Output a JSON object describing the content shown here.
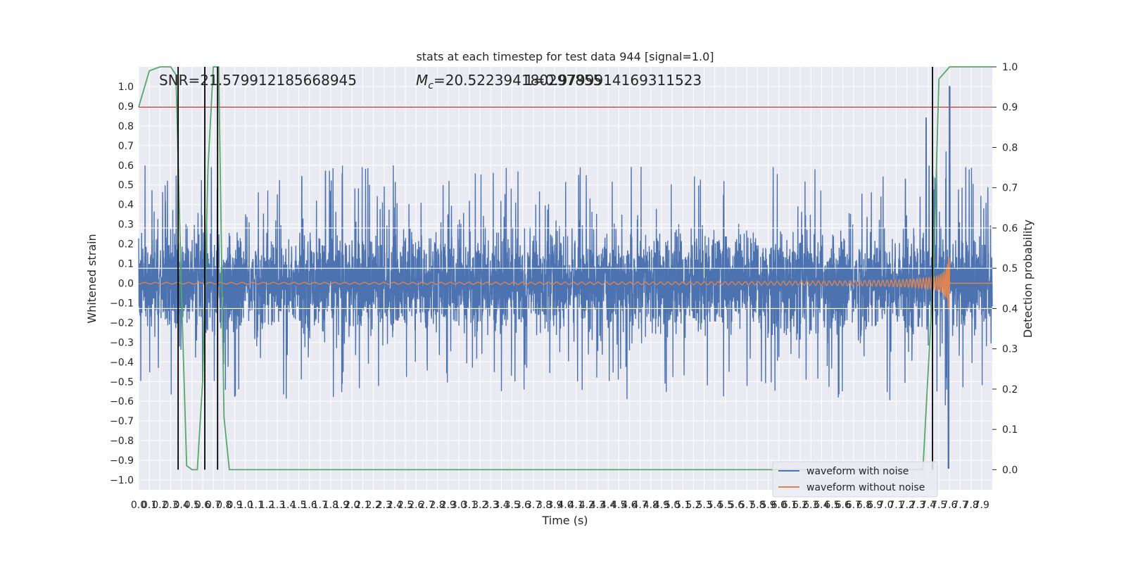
{
  "chart_data": {
    "type": "line",
    "title": "stats at each timestep for test data 944 [signal=1.0]",
    "xlabel": "Time (s)",
    "ylabel": "Whitened strain",
    "y2label": "Detection probability",
    "xlim": [
      0.0,
      8.0
    ],
    "ylim": [
      -1.05,
      1.1
    ],
    "y2lim": [
      -0.05,
      1.0
    ],
    "xticks": [
      "0.0",
      "0.1",
      "0.2",
      "0.3",
      "0.4",
      "0.5",
      "0.6",
      "0.7",
      "0.8",
      "0.9",
      "1.0",
      "1.1",
      "1.2",
      "1.3",
      "1.4",
      "1.5",
      "1.6",
      "1.7",
      "1.8",
      "1.9",
      "2.0",
      "2.1",
      "2.2",
      "2.3",
      "2.4",
      "2.5",
      "2.6",
      "2.7",
      "2.8",
      "2.9",
      "3.0",
      "3.1",
      "3.2",
      "3.3",
      "3.4",
      "3.5",
      "3.6",
      "3.7",
      "3.8",
      "3.9",
      "4.0",
      "4.1",
      "4.2",
      "4.3",
      "4.4",
      "4.5",
      "4.6",
      "4.7",
      "4.8",
      "4.9",
      "5.0",
      "5.1",
      "5.2",
      "5.3",
      "5.4",
      "5.5",
      "5.6",
      "5.7",
      "5.8",
      "5.9",
      "6.0",
      "6.1",
      "6.2",
      "6.3",
      "6.4",
      "6.5",
      "6.6",
      "6.7",
      "6.8",
      "6.9",
      "7.0",
      "7.1",
      "7.2",
      "7.3",
      "7.4",
      "7.5",
      "7.6",
      "7.7",
      "7.8",
      "7.9"
    ],
    "yticks": [
      "1.0",
      "0.9",
      "0.8",
      "0.7",
      "0.6",
      "0.5",
      "0.4",
      "0.3",
      "0.2",
      "0.1",
      "0.0",
      "-0.1",
      "-0.2",
      "-0.3",
      "-0.4",
      "-0.5",
      "-0.6",
      "-0.7",
      "-0.8",
      "-0.9",
      "-1.0"
    ],
    "y2ticks": [
      "1.0",
      "0.9",
      "0.8",
      "0.7",
      "0.6",
      "0.5",
      "0.4",
      "0.3",
      "0.2",
      "0.1",
      "0.0"
    ],
    "annotations": {
      "snr": "SNR=21.579912185668945",
      "mc_symbol": "M",
      "mc_sub": "c",
      "mc_value": "=20.522394180297855",
      "overlap": "1=0.9799914169311523"
    },
    "threshold": {
      "y2": 0.9,
      "color": "#c44e52"
    },
    "detection_probability": {
      "x": [
        0.0,
        0.1,
        0.2,
        0.3,
        0.35,
        0.4,
        0.45,
        0.5,
        0.55,
        0.6,
        0.65,
        0.7,
        0.75,
        0.8,
        0.85,
        0.9,
        1.0,
        2.0,
        3.0,
        4.0,
        5.0,
        6.0,
        7.0,
        7.35,
        7.45,
        7.5,
        7.6,
        7.7,
        7.8,
        8.0
      ],
      "y": [
        0.9,
        0.99,
        1.0,
        1.0,
        0.98,
        0.45,
        0.01,
        0.0,
        0.0,
        0.22,
        0.75,
        1.0,
        1.0,
        0.13,
        0.0,
        0.0,
        0.0,
        0.0,
        0.0,
        0.0,
        0.0,
        0.0,
        0.0,
        0.0,
        0.5,
        0.97,
        1.0,
        1.0,
        1.0,
        1.0
      ],
      "color": "#55a868"
    },
    "vertical_markers": [
      0.37,
      0.62,
      0.74,
      7.44
    ],
    "series": [
      {
        "name": "waveform with noise",
        "color": "#4c72b0"
      },
      {
        "name": "waveform without noise",
        "color": "#dd8452"
      }
    ],
    "noise_envelope": {
      "typical_amplitude": 0.2,
      "peak_max": 1.0,
      "peak_min": -0.94,
      "merger_time": 7.6
    },
    "legend_position": "bottom-right",
    "grid": true
  }
}
